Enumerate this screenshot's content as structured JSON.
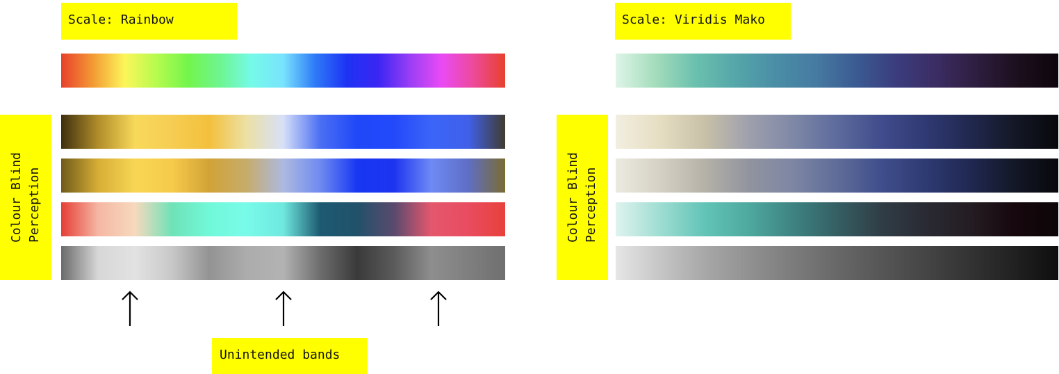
{
  "panels": [
    {
      "scale_label": "Scale: Rainbow",
      "side_label_lines": [
        "Colour Blind",
        "Perception"
      ],
      "main_bar": {
        "name": "rainbow",
        "stops": [
          "#e8402c",
          "#f39a34",
          "#fcf65a",
          "#b6fb4e",
          "#73f54b",
          "#6ef590",
          "#75fae8",
          "#79e3fd",
          "#2e7bf7",
          "#1d33f4",
          "#3b26f3",
          "#9a3ef5",
          "#e94bf4",
          "#ed4a9a",
          "#e8402c"
        ]
      },
      "cb_bars": [
        {
          "name": "deuteranopia",
          "stops": [
            "#3e2f0e",
            "#b18d2a",
            "#f8d95a",
            "#f6cd52",
            "#f3c03c",
            "#ece0a4",
            "#d7e0f8",
            "#4b6ff3",
            "#1f48f9",
            "#2349fa",
            "#3b65f8",
            "#4060ea",
            "#3f3c2f"
          ]
        },
        {
          "name": "protanopia",
          "stops": [
            "#6f5b1a",
            "#d6ae36",
            "#f8d654",
            "#f6ca4a",
            "#d1a337",
            "#c6ac6a",
            "#adb9e0",
            "#6f8bf0",
            "#1737f3",
            "#1d34ef",
            "#6e8af5",
            "#5f6ec5",
            "#7a6b32"
          ]
        },
        {
          "name": "tritanopia",
          "stops": [
            "#e53e36",
            "#f5b7a4",
            "#f6d9bd",
            "#6fe2b8",
            "#71f8d8",
            "#79fbea",
            "#6fe8de",
            "#1d5a72",
            "#21516a",
            "#5a4a6e",
            "#e4576d",
            "#e94c60",
            "#e8413b"
          ]
        },
        {
          "name": "achromatopsia",
          "stops": [
            "#6b6b6b",
            "#d7d7d7",
            "#e2e2e2",
            "#c8c8c8",
            "#939393",
            "#acacac",
            "#b3b3b3",
            "#6d6d6d",
            "#3a3a3a",
            "#5b5b5b",
            "#8e8e8e",
            "#7f7f7f",
            "#6f6f6f"
          ]
        }
      ],
      "arrows_label": "Unintended bands"
    },
    {
      "scale_label": "Scale: Viridis Mako",
      "side_label_lines": [
        "Colour Blind",
        "Perception"
      ],
      "main_bar": {
        "name": "mako",
        "stops": [
          "#def5e7",
          "#a3dcbb",
          "#6ac0ae",
          "#54a6a9",
          "#4a8da6",
          "#467aa1",
          "#3b5a92",
          "#3b3c7d",
          "#3b2c62",
          "#2d1d3e",
          "#1c0f1d",
          "#0d050d"
        ]
      },
      "cb_bars": [
        {
          "name": "deuteranopia",
          "stops": [
            "#f2eee0",
            "#e6dec2",
            "#c8c1a8",
            "#9fa0ad",
            "#7f88a6",
            "#5d6b9d",
            "#404c8c",
            "#2f3a73",
            "#21284f",
            "#141826",
            "#08080c"
          ]
        },
        {
          "name": "protanopia",
          "stops": [
            "#eceae0",
            "#d5d1c4",
            "#b5b2a8",
            "#91949f",
            "#7e86a4",
            "#5f6c99",
            "#3f4e8c",
            "#2e3a72",
            "#202852",
            "#131827",
            "#08080c"
          ]
        },
        {
          "name": "tritanopia",
          "stops": [
            "#dff3ef",
            "#9fddd2",
            "#62c4b7",
            "#4ea99e",
            "#3e8382",
            "#355f63",
            "#303d46",
            "#2a2a33",
            "#241d22",
            "#16080d",
            "#0c0507"
          ]
        },
        {
          "name": "achromatopsia",
          "stops": [
            "#e6e6e6",
            "#c6c6c6",
            "#a8a8a8",
            "#919191",
            "#7c7c7c",
            "#686868",
            "#565656",
            "#454545",
            "#333333",
            "#212121",
            "#0e0e0e"
          ]
        }
      ]
    }
  ]
}
